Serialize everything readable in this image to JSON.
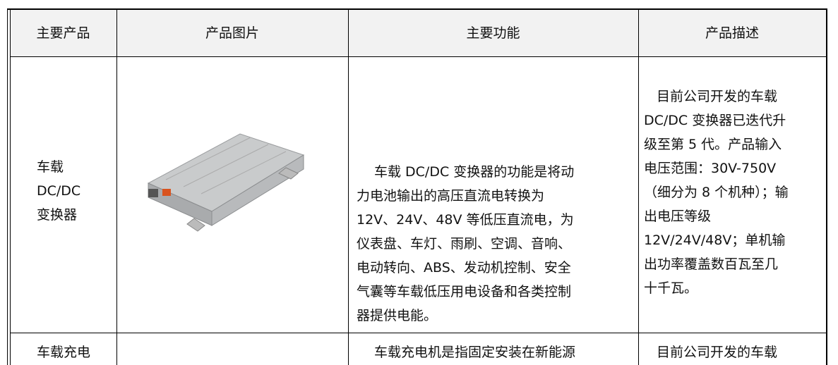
{
  "table": {
    "header": [
      "主要产品",
      "产品图片",
      "主要功能",
      "产品描述"
    ],
    "rows": [
      {
        "product": [
          "车载",
          "DC/DC",
          "变换器"
        ],
        "function": [
          "车载 DC/DC 变换器的功能是将动",
          "力电池输出的高压直流电转换为",
          "12V、24V、48V 等低压直流电，为",
          "仪表盘、车灯、雨刷、空调、音响、",
          "电动转向、ABS、发动机控制、安全",
          "气囊等车载低压用电设备和各类控制",
          "器提供电能。"
        ],
        "description": [
          "目前公司开发的车载",
          "DC/DC 变换器已迭代升",
          "级至第 5 代。产品输入",
          "电压范围：30V-750V",
          "（细分为 8 个机种）；输",
          "出电压等级",
          "12V/24V/48V；单机输",
          "出功率覆盖数百瓦至几",
          "十千瓦。"
        ]
      },
      {
        "product": [
          "车载充电"
        ],
        "function": [
          "车载充电机是指固定安装在新能源"
        ],
        "description": [
          "目前公司开发的车载"
        ]
      }
    ]
  }
}
